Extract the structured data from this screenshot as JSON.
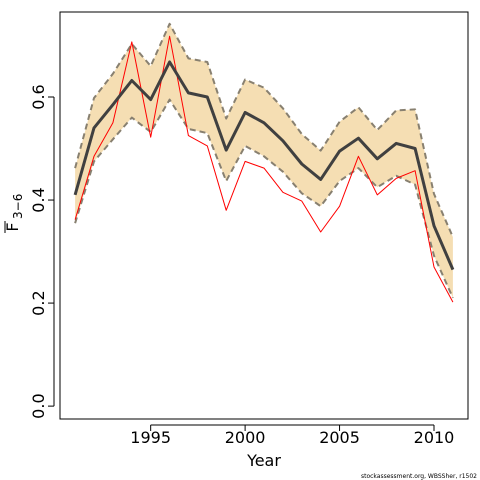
{
  "chart_data": {
    "type": "line",
    "xlabel": "Year",
    "ylabel": "F",
    "ylabel_subscript": "3−6",
    "xlim": [
      1990.2,
      2011.8
    ],
    "ylim": [
      -0.025,
      0.765
    ],
    "x_ticks": [
      {
        "value": 1995,
        "label": "1995"
      },
      {
        "value": 2000,
        "label": "2000"
      },
      {
        "value": 2005,
        "label": "2005"
      },
      {
        "value": 2010,
        "label": "2010"
      }
    ],
    "y_ticks": [
      {
        "value": 0.0,
        "label": "0.0"
      },
      {
        "value": 0.2,
        "label": "0.2"
      },
      {
        "value": 0.4,
        "label": "0.4"
      },
      {
        "value": 0.6,
        "label": "0.6"
      }
    ],
    "x": [
      1991,
      1992,
      1993,
      1994,
      1995,
      1996,
      1997,
      1998,
      1999,
      2000,
      2001,
      2002,
      2003,
      2004,
      2005,
      2006,
      2007,
      2008,
      2009,
      2010,
      2011
    ],
    "series": [
      {
        "values": [
          0.41,
          0.54,
          0.585,
          0.632,
          0.595,
          0.668,
          0.608,
          0.6,
          0.497,
          0.57,
          0.55,
          0.515,
          0.47,
          0.44,
          0.495,
          0.52,
          0.48,
          0.51,
          0.5,
          0.35,
          0.265
        ],
        "color": "#404040"
      },
      {
        "values": [
          0.462,
          0.598,
          0.645,
          0.703,
          0.66,
          0.742,
          0.675,
          0.668,
          0.558,
          0.634,
          0.618,
          0.578,
          0.528,
          0.496,
          0.552,
          0.58,
          0.536,
          0.574,
          0.576,
          0.412,
          0.328
        ],
        "color": "#888070"
      },
      {
        "values": [
          0.355,
          0.475,
          0.518,
          0.56,
          0.532,
          0.595,
          0.538,
          0.53,
          0.437,
          0.505,
          0.485,
          0.455,
          0.413,
          0.388,
          0.437,
          0.462,
          0.425,
          0.447,
          0.43,
          0.292,
          0.21
        ],
        "color": "#888070"
      },
      {
        "values": [
          0.362,
          0.485,
          0.55,
          0.707,
          0.522,
          0.718,
          0.525,
          0.505,
          0.38,
          0.475,
          0.462,
          0.415,
          0.398,
          0.338,
          0.388,
          0.485,
          0.41,
          0.442,
          0.457,
          0.27,
          0.202
        ],
        "color": "#ff0000"
      }
    ],
    "band_color": "#f5deb3",
    "grid": false,
    "legend": "none"
  },
  "footer": {
    "text": "stockassessment.org, WBSSher, r1502"
  }
}
